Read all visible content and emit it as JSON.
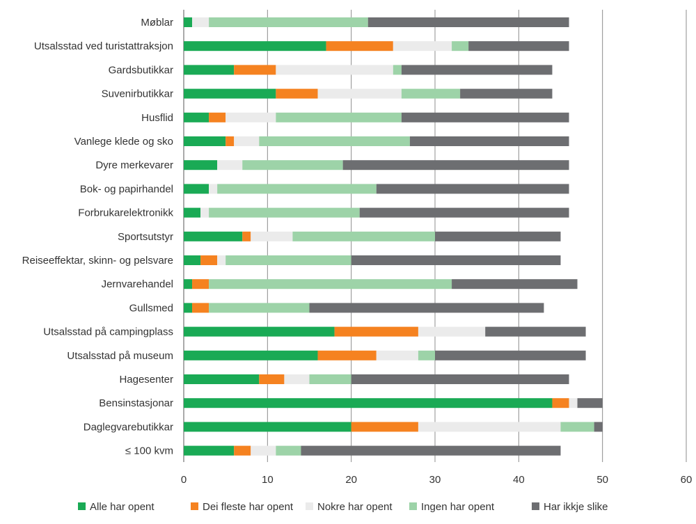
{
  "chart_data": {
    "type": "bar",
    "orientation": "horizontal",
    "stacked": true,
    "categories": [
      "Møblar",
      "Utsalsstad ved turistattraksjon",
      "Gardsbutikkar",
      "Suvenirbutikkar",
      "Husflid",
      "Vanlege klede og sko",
      "Dyre merkevarer",
      "Bok- og papirhandel",
      "Forbrukarelektronikk",
      "Sportsutstyr",
      "Reiseeffektar, skinn- og pelsvare",
      "Jernvarehandel",
      "Gullsmed",
      "Utsalsstad på campingplass",
      "Utsalsstad på museum",
      "Hagesenter",
      "Bensinstasjonar",
      "Daglegvarebutikkar",
      "≤ 100 kvm"
    ],
    "series": [
      {
        "name": "Alle har opent",
        "color": "#1aaa55",
        "values": [
          1,
          17,
          6,
          11,
          3,
          5,
          4,
          3,
          2,
          7,
          2,
          1,
          1,
          18,
          16,
          9,
          44,
          20,
          6
        ]
      },
      {
        "name": "Dei fleste har opent",
        "color": "#f58220",
        "values": [
          0,
          8,
          5,
          5,
          2,
          1,
          0,
          0,
          0,
          1,
          2,
          2,
          2,
          10,
          7,
          3,
          2,
          8,
          2
        ]
      },
      {
        "name": "Nokre har opent",
        "color": "#ebebeb",
        "values": [
          2,
          7,
          14,
          10,
          6,
          3,
          3,
          1,
          1,
          5,
          1,
          0,
          0,
          8,
          5,
          3,
          1,
          17,
          3
        ]
      },
      {
        "name": "Ingen har opent",
        "color": "#9dd3a8",
        "values": [
          19,
          2,
          1,
          7,
          15,
          18,
          12,
          19,
          18,
          17,
          15,
          29,
          12,
          0,
          2,
          5,
          0,
          4,
          3
        ]
      },
      {
        "name": "Har ikkje slike",
        "color": "#6d6e71",
        "values": [
          24,
          12,
          18,
          11,
          20,
          19,
          27,
          23,
          25,
          15,
          25,
          15,
          28,
          12,
          18,
          26,
          3,
          1,
          31
        ]
      }
    ],
    "x_ticks": [
      "0",
      "10",
      "20",
      "30",
      "40",
      "50",
      "60"
    ],
    "xlim": [
      0,
      60
    ],
    "grid": "vertical",
    "legend_position": "bottom"
  }
}
